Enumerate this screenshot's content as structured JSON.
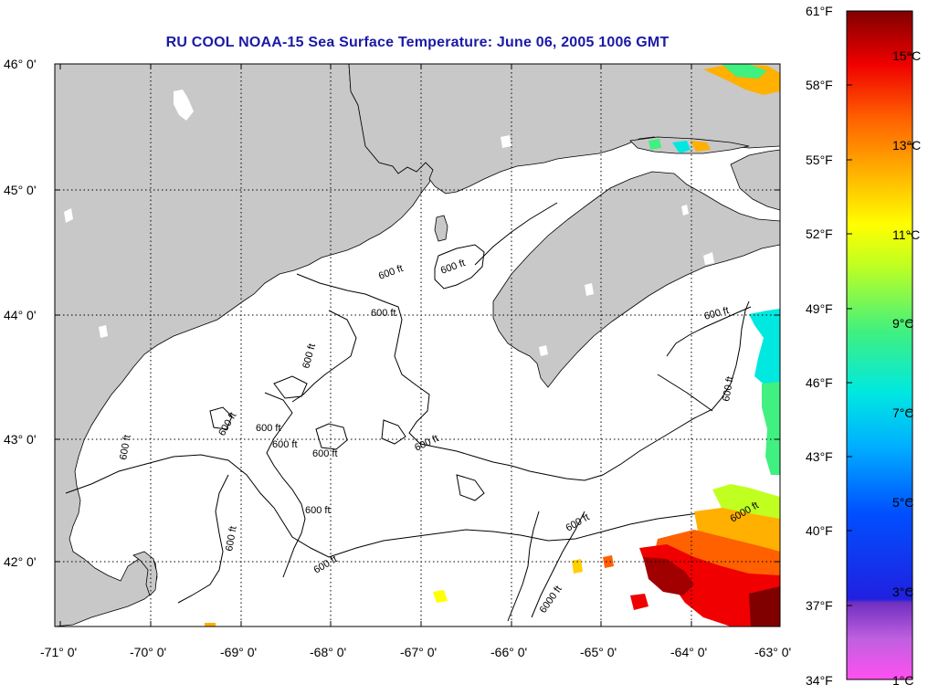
{
  "title": "RU COOL  NOAA-15  Sea Surface Temperature:  June 06, 2005 1006 GMT",
  "lat_labels": [
    "46° 0'",
    "45° 0'",
    "44° 0'",
    "43° 0'",
    "42° 0'"
  ],
  "lon_labels": [
    "-71° 0'",
    "-70° 0'",
    "-69° 0'",
    "-68° 0'",
    "-67° 0'",
    "-66° 0'",
    "-65° 0'",
    "-64° 0'",
    "-63° 0'"
  ],
  "contour_labels": [
    "600 ft",
    "600 ft",
    "600 ft",
    "600 ft",
    "600 ft",
    "600 ft",
    "600 ft",
    "600 ft",
    "600 ft",
    "600 ft",
    "600 ft",
    "600 ft",
    "600 ft",
    "600 ft",
    "6000 ft",
    "6000 ft",
    "600 ft",
    "600 ft"
  ],
  "colorbar": {
    "fahrenheit": [
      "61°F",
      "58°F",
      "55°F",
      "52°F",
      "49°F",
      "46°F",
      "43°F",
      "40°F",
      "37°F",
      "34°F"
    ],
    "celsius": [
      "15°C",
      "13°C",
      "11°C",
      "9°C",
      "7°C",
      "5°C",
      "3°C",
      "1°C"
    ]
  },
  "colors": {
    "land": "#c8c8c8",
    "title": "#1a1aa6",
    "ocean": "#ffffff"
  }
}
